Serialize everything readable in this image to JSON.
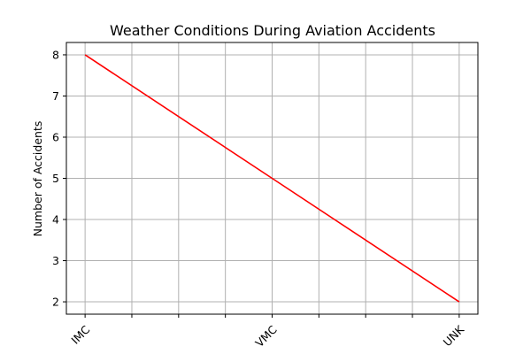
{
  "chart_data": {
    "type": "line",
    "title": "Weather Conditions During Aviation Accidents",
    "xlabel": "",
    "ylabel": "Number of Accidents",
    "categories": [
      "IMC",
      "VMC",
      "UNK"
    ],
    "x": [
      0,
      1,
      2
    ],
    "series": [
      {
        "values": [
          8,
          5,
          2
        ],
        "color": "#ff0000"
      }
    ],
    "xlim": [
      -0.1,
      2.1
    ],
    "ylim": [
      1.7,
      8.3
    ],
    "yticks": [
      2,
      3,
      4,
      5,
      6,
      7,
      8
    ],
    "xticks_minor": [
      0,
      0.25,
      0.5,
      0.75,
      1,
      1.25,
      1.5,
      1.75,
      2
    ],
    "grid": true,
    "legend": "none"
  }
}
